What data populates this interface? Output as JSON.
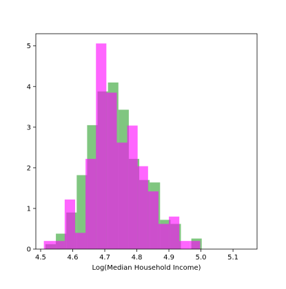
{
  "chart_data": {
    "type": "bar",
    "title": "",
    "xlabel": "Log(Median Household Income)",
    "ylabel": "",
    "xlim": [
      4.485,
      5.175
    ],
    "ylim": [
      0,
      5.3
    ],
    "xticks": [
      4.5,
      4.6,
      4.7,
      4.8,
      4.9,
      5.0,
      5.1
    ],
    "xtick_labels": [
      "4.5",
      "4.6",
      "4.7",
      "4.8",
      "4.9",
      "5.0",
      "5.1"
    ],
    "yticks": [
      0,
      1,
      2,
      3,
      4,
      5
    ],
    "ytick_labels": [
      "0",
      "1",
      "2",
      "3",
      "4",
      "5"
    ],
    "grid": false,
    "legend": "none",
    "series": [
      {
        "color": "#2ca02c",
        "opacity": 0.6,
        "bins": [
          {
            "x0": 4.515,
            "x1": 4.5475,
            "value": 0.12
          },
          {
            "x0": 4.5475,
            "x1": 4.58,
            "value": 0.38
          },
          {
            "x0": 4.58,
            "x1": 4.6125,
            "value": 0.9
          },
          {
            "x0": 4.6125,
            "x1": 4.645,
            "value": 1.82
          },
          {
            "x0": 4.645,
            "x1": 4.6775,
            "value": 3.05
          },
          {
            "x0": 4.6775,
            "x1": 4.71,
            "value": 3.88
          },
          {
            "x0": 4.71,
            "x1": 4.7425,
            "value": 4.1
          },
          {
            "x0": 4.7425,
            "x1": 4.775,
            "value": 3.43
          },
          {
            "x0": 4.775,
            "x1": 4.8075,
            "value": 2.22
          },
          {
            "x0": 4.8075,
            "x1": 4.84,
            "value": 1.7
          },
          {
            "x0": 4.84,
            "x1": 4.8725,
            "value": 1.64
          },
          {
            "x0": 4.8725,
            "x1": 4.905,
            "value": 0.72
          },
          {
            "x0": 4.905,
            "x1": 4.9375,
            "value": 0.62
          },
          {
            "x0": 4.9375,
            "x1": 4.97,
            "value": 0.0
          },
          {
            "x0": 4.97,
            "x1": 5.0025,
            "value": 0.26
          }
        ]
      },
      {
        "color": "#ff00ff",
        "opacity": 0.6,
        "bins": [
          {
            "x0": 4.51,
            "x1": 4.5425,
            "value": 0.2
          },
          {
            "x0": 4.5425,
            "x1": 4.575,
            "value": 0.2
          },
          {
            "x0": 4.575,
            "x1": 4.6075,
            "value": 1.22
          },
          {
            "x0": 4.6075,
            "x1": 4.64,
            "value": 0.4
          },
          {
            "x0": 4.64,
            "x1": 4.6725,
            "value": 2.22
          },
          {
            "x0": 4.6725,
            "x1": 4.705,
            "value": 5.06
          },
          {
            "x0": 4.705,
            "x1": 4.7375,
            "value": 3.85
          },
          {
            "x0": 4.7375,
            "x1": 4.77,
            "value": 2.62
          },
          {
            "x0": 4.77,
            "x1": 4.8025,
            "value": 3.04
          },
          {
            "x0": 4.8025,
            "x1": 4.835,
            "value": 2.04
          },
          {
            "x0": 4.835,
            "x1": 4.8675,
            "value": 1.42
          },
          {
            "x0": 4.8675,
            "x1": 4.9,
            "value": 0.62
          },
          {
            "x0": 4.9,
            "x1": 4.9325,
            "value": 0.8
          },
          {
            "x0": 4.9325,
            "x1": 4.965,
            "value": 0.2
          },
          {
            "x0": 4.965,
            "x1": 4.9975,
            "value": 0.2
          }
        ]
      }
    ]
  }
}
